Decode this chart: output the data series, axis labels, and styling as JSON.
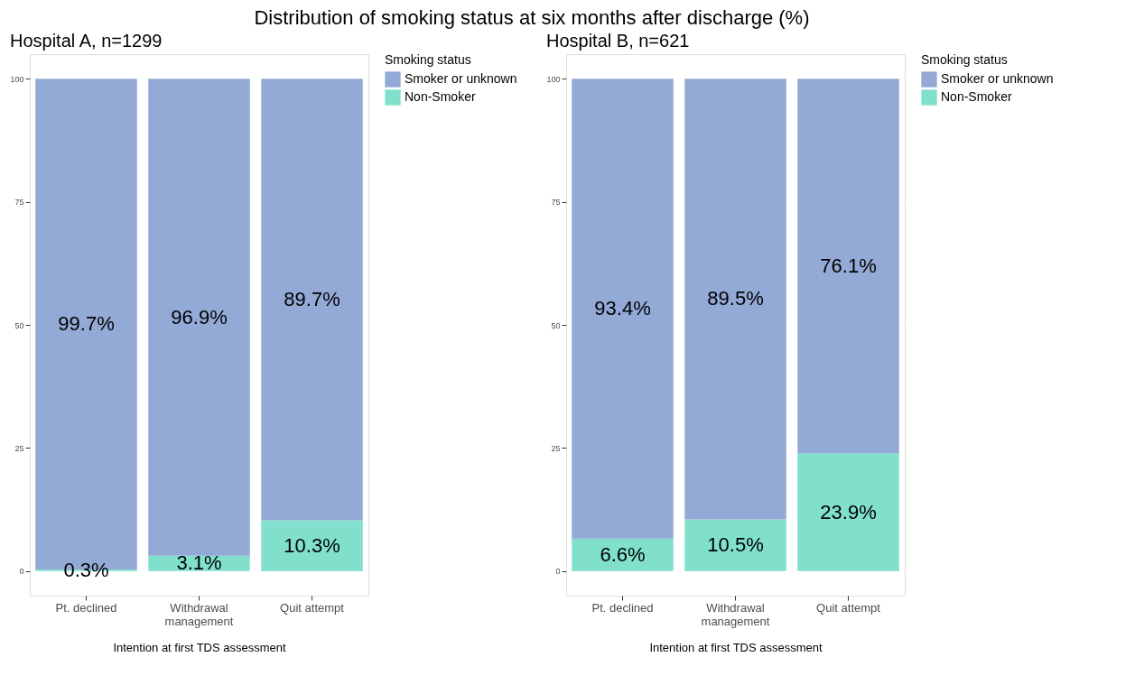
{
  "chart_data": [
    {
      "type": "bar",
      "stacked": true,
      "title": "Hospital A, n=1299",
      "annotations": [
        "Distribution of smoking status at six months after discharge (%)"
      ],
      "xlabel": "Intention at first TDS assessment",
      "legend_title": "Smoking status",
      "categories": [
        "Pt. declined",
        "Withdrawal\nmanagement",
        "Quit attempt"
      ],
      "series": [
        {
          "name": "Non-Smoker",
          "color": "#80e0cb",
          "values": [
            0.3,
            3.1,
            10.3
          ],
          "value_labels": [
            "0.3%",
            "3.1%",
            "10.3%"
          ]
        },
        {
          "name": "Smoker or unknown",
          "color": "#93a9d6",
          "values": [
            99.7,
            96.9,
            89.7
          ],
          "value_labels": [
            "99.7%",
            "96.9%",
            "89.7%"
          ]
        }
      ],
      "ylim": [
        -5,
        105
      ],
      "yticks": [
        0,
        25,
        50,
        75,
        100
      ],
      "grid": true,
      "legend": "right"
    },
    {
      "type": "bar",
      "stacked": true,
      "title": "Hospital B, n=621",
      "xlabel": "Intention at first TDS assessment",
      "legend_title": "Smoking status",
      "categories": [
        "Pt. declined",
        "Withdrawal\nmanagement",
        "Quit attempt"
      ],
      "series": [
        {
          "name": "Non-Smoker",
          "color": "#80e0cb",
          "values": [
            6.6,
            10.5,
            23.9
          ],
          "value_labels": [
            "6.6%",
            "10.5%",
            "23.9%"
          ]
        },
        {
          "name": "Smoker or unknown",
          "color": "#93a9d6",
          "values": [
            93.4,
            89.5,
            76.1
          ],
          "value_labels": [
            "93.4%",
            "89.5%",
            "76.1%"
          ]
        }
      ],
      "ylim": [
        -5,
        105
      ],
      "yticks": [
        0,
        25,
        50,
        75,
        100
      ],
      "grid": true,
      "legend": "right"
    }
  ]
}
